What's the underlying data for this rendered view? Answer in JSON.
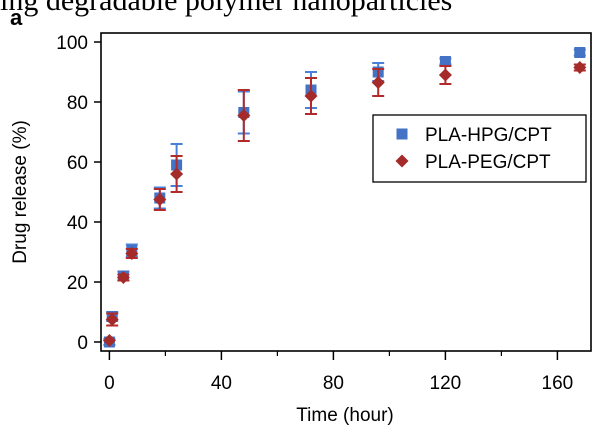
{
  "header": {
    "top_caption": "ing degradable polymer nanoparticles",
    "panel_label": "a"
  },
  "chart_data": {
    "type": "scatter",
    "title": "",
    "xlabel": "Time (hour)",
    "ylabel": "Drug release (%)",
    "xlim": [
      -3,
      172
    ],
    "ylim": [
      -3,
      103
    ],
    "x_ticks": [
      0,
      40,
      80,
      120,
      160
    ],
    "x_minor_ticks": [
      20,
      60,
      100,
      140
    ],
    "y_ticks": [
      0,
      20,
      40,
      60,
      80,
      100
    ],
    "grid": false,
    "legend_position": "right-middle",
    "series": [
      {
        "name": "PLA-HPG/CPT",
        "marker": "square",
        "color": "#4472c4",
        "error_color": "#4a80d8",
        "points": [
          {
            "x": 0,
            "y": 0,
            "err": 1
          },
          {
            "x": 1,
            "y": 8.5,
            "err": 1.5
          },
          {
            "x": 5,
            "y": 22,
            "err": 1.5
          },
          {
            "x": 8,
            "y": 30.5,
            "err": 2
          },
          {
            "x": 18,
            "y": 48,
            "err": 3.5
          },
          {
            "x": 24,
            "y": 59,
            "err": 7
          },
          {
            "x": 48,
            "y": 76.5,
            "err": 7
          },
          {
            "x": 72,
            "y": 84,
            "err": 6
          },
          {
            "x": 96,
            "y": 90,
            "err": 3
          },
          {
            "x": 120,
            "y": 93.5,
            "err": 1
          },
          {
            "x": 168,
            "y": 96.5,
            "err": 1
          }
        ]
      },
      {
        "name": "PLA-PEG/CPT",
        "marker": "diamond",
        "color": "#a52a2a",
        "error_color": "#b22a2a",
        "points": [
          {
            "x": 0,
            "y": 0.5,
            "err": 0.5
          },
          {
            "x": 1,
            "y": 7.5,
            "err": 2
          },
          {
            "x": 5,
            "y": 21.5,
            "err": 1
          },
          {
            "x": 8,
            "y": 29.5,
            "err": 1.5
          },
          {
            "x": 18,
            "y": 47.5,
            "err": 3.5
          },
          {
            "x": 24,
            "y": 56,
            "err": 6
          },
          {
            "x": 48,
            "y": 75.5,
            "err": 8.5
          },
          {
            "x": 72,
            "y": 82,
            "err": 6
          },
          {
            "x": 96,
            "y": 86.5,
            "err": 4.5
          },
          {
            "x": 120,
            "y": 89,
            "err": 3
          },
          {
            "x": 168,
            "y": 91.5,
            "err": 1
          }
        ]
      }
    ]
  }
}
